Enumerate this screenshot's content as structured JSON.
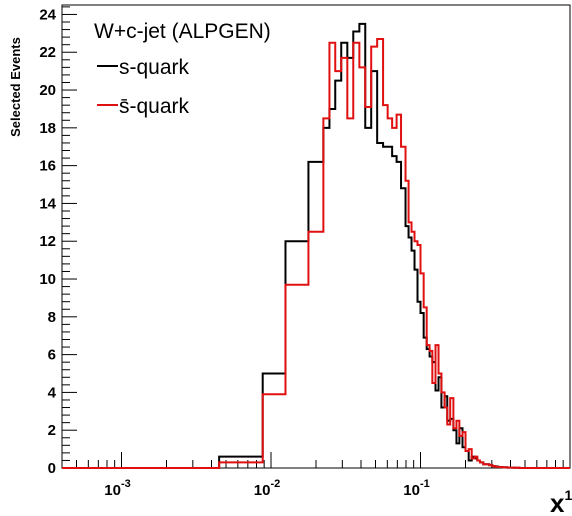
{
  "chart_data": {
    "type": "line",
    "subtype": "step-histogram",
    "title": "",
    "xlabel": "x",
    "xlabel_sup": "1",
    "ylabel": "Selected Events",
    "x_scale": "log",
    "xlim": [
      0.0004,
      1.0
    ],
    "ylim": [
      0,
      24.5
    ],
    "y_ticks": [
      0,
      2,
      4,
      6,
      8,
      10,
      12,
      14,
      16,
      18,
      20,
      22,
      24
    ],
    "x_tick_labels": [
      {
        "value": 0.001,
        "base": "10",
        "exp": "-3"
      },
      {
        "value": 0.01,
        "base": "10",
        "exp": "-2"
      },
      {
        "value": 0.1,
        "base": "10",
        "exp": "-1"
      }
    ],
    "legend": {
      "title": "W+c-jet (ALPGEN)",
      "placement": "top-left",
      "entries": [
        {
          "label": "s-quark",
          "color": "#000000"
        },
        {
          "label": "s̄-quark",
          "color": "#e01010"
        }
      ]
    },
    "series": [
      {
        "name": "s-quark",
        "color": "#000000",
        "edges": [
          0.0004,
          0.0045,
          0.0088,
          0.0125,
          0.0178,
          0.0224,
          0.0246,
          0.0269,
          0.0295,
          0.0324,
          0.0355,
          0.039,
          0.0427,
          0.0468,
          0.0513,
          0.0562,
          0.0603,
          0.0646,
          0.0692,
          0.0741,
          0.0794,
          0.0832,
          0.0871,
          0.0912,
          0.0955,
          0.1,
          0.105,
          0.11,
          0.115,
          0.12,
          0.126,
          0.132,
          0.138,
          0.145,
          0.151,
          0.158,
          0.166,
          0.174,
          0.182,
          0.191,
          0.2,
          0.21,
          0.22,
          0.23,
          0.24,
          0.25,
          0.263,
          0.275,
          0.288,
          0.302,
          0.316,
          0.331,
          0.355,
          0.38,
          0.42,
          0.46,
          0.5,
          0.56,
          1.0
        ],
        "values": [
          0,
          0.6,
          5.0,
          12.0,
          16.2,
          18.0,
          19.0,
          20.5,
          22.5,
          21.7,
          23.1,
          23.5,
          18.0,
          21.0,
          17.2,
          17.0,
          17.0,
          16.5,
          16.2,
          14.8,
          12.8,
          12.2,
          11.5,
          10.5,
          8.8,
          8.2,
          6.9,
          6.3,
          5.9,
          5.6,
          4.1,
          4.8,
          3.2,
          3.8,
          2.5,
          2.6,
          2.0,
          1.3,
          2.1,
          1.1,
          0.9,
          0.4,
          0.6,
          0.5,
          0.4,
          0.3,
          0.2,
          0.2,
          0.15,
          0.1,
          0.08,
          0.05,
          0.04,
          0.02,
          0.01,
          0.0,
          0.0,
          0.0
        ]
      },
      {
        "name": "s̄-quark",
        "color": "#e01010",
        "edges": [
          0.0004,
          0.0045,
          0.0088,
          0.0125,
          0.0178,
          0.0224,
          0.0246,
          0.0269,
          0.0295,
          0.0324,
          0.0355,
          0.039,
          0.0427,
          0.0468,
          0.0513,
          0.0562,
          0.0603,
          0.0646,
          0.0692,
          0.0741,
          0.0794,
          0.0832,
          0.0871,
          0.0912,
          0.0955,
          0.1,
          0.105,
          0.11,
          0.115,
          0.12,
          0.126,
          0.132,
          0.138,
          0.145,
          0.151,
          0.158,
          0.166,
          0.174,
          0.182,
          0.191,
          0.2,
          0.21,
          0.22,
          0.23,
          0.24,
          0.25,
          0.263,
          0.275,
          0.288,
          0.302,
          0.316,
          0.331,
          0.355,
          0.38,
          0.42,
          0.46,
          0.5,
          0.56,
          1.0
        ],
        "values": [
          0,
          0.3,
          3.9,
          9.7,
          12.5,
          18.5,
          22.5,
          21.0,
          21.7,
          18.5,
          22.5,
          21.2,
          19.1,
          22.3,
          22.7,
          19.2,
          18.5,
          18.0,
          18.7,
          17.0,
          15.2,
          13.0,
          12.5,
          12.0,
          11.8,
          10.3,
          8.5,
          6.5,
          6.2,
          4.5,
          6.5,
          5.0,
          4.0,
          3.2,
          2.3,
          3.7,
          2.1,
          2.5,
          1.7,
          1.9,
          0.9,
          1.0,
          0.5,
          0.6,
          0.4,
          0.3,
          0.2,
          0.2,
          0.15,
          0.1,
          0.06,
          0.05,
          0.03,
          0.02,
          0.01,
          0.0,
          0.0,
          0.0
        ]
      }
    ]
  }
}
